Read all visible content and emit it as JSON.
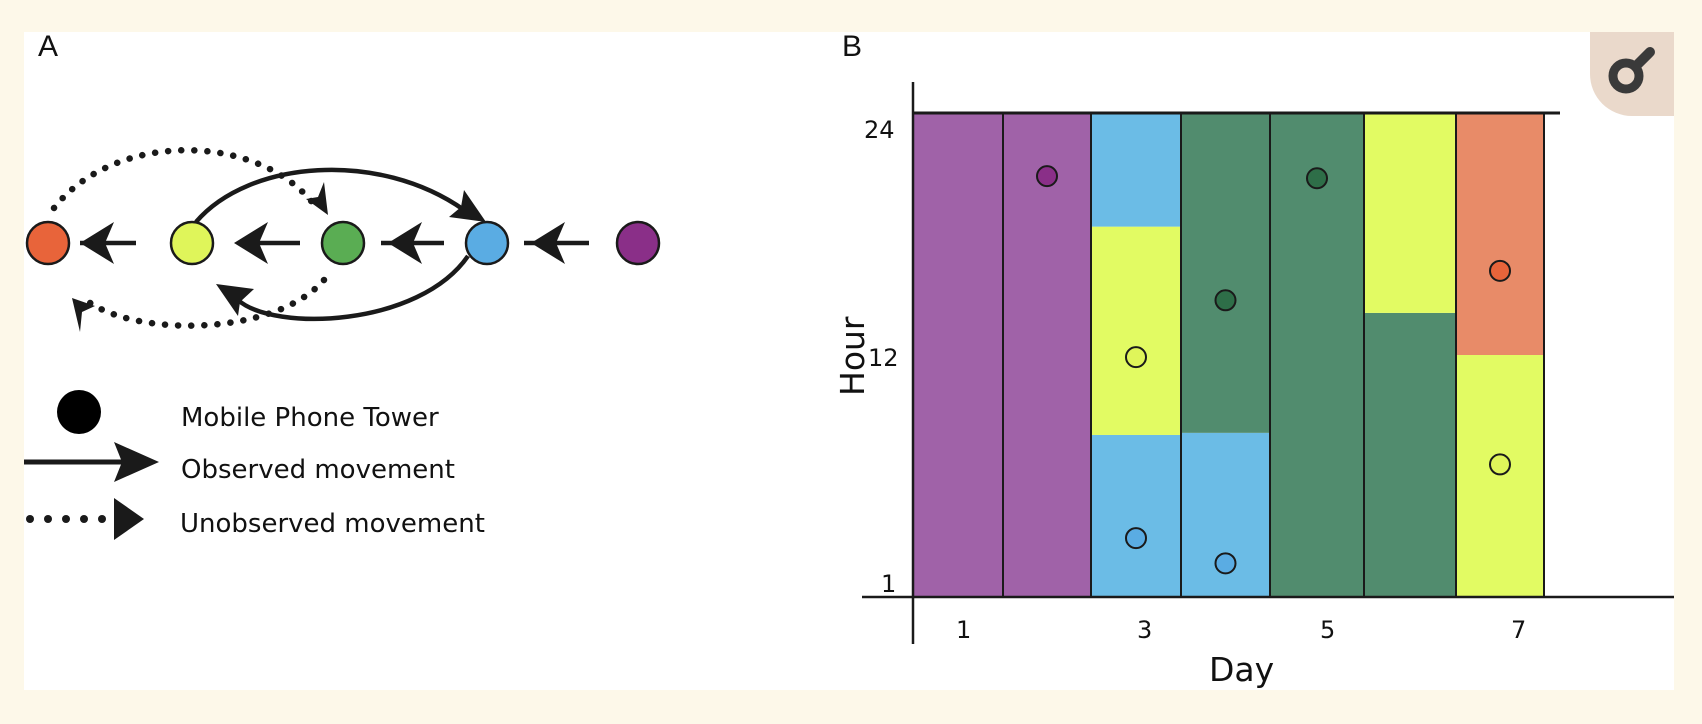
{
  "panel_a": {
    "label": "A",
    "nodes": [
      {
        "id": "orange",
        "color": "#e8643a"
      },
      {
        "id": "yellow",
        "color": "#dff55a"
      },
      {
        "id": "green",
        "color": "#5aad53"
      },
      {
        "id": "blue",
        "color": "#5aace3"
      },
      {
        "id": "purple",
        "color": "#8a2f88"
      }
    ],
    "legend": {
      "tower": "Mobile Phone Tower",
      "observed": "Observed movement",
      "unobserved": "Unobserved movement"
    }
  },
  "panel_b": {
    "label": "B",
    "xlabel": "Day",
    "ylabel": "Hour",
    "xticks": [
      "1",
      "3",
      "5",
      "7"
    ],
    "yticks": [
      "24",
      "12",
      "1"
    ]
  },
  "chart_data": {
    "type": "bar",
    "xlabel": "Day",
    "ylabel": "Hour",
    "ylim": [
      1,
      24
    ],
    "days": [
      1,
      2,
      3,
      4,
      5,
      6,
      7
    ],
    "colors": {
      "purple": "#a062a8",
      "blue": "#6bbce6",
      "yellow": "#e2fb63",
      "green": "#518c6e",
      "orange": "#e88b68"
    },
    "marker_colors": {
      "purple": "#8a2f88",
      "blue": "#5aace3",
      "yellow": "#dff55a",
      "green": "#2e6e48",
      "orange": "#e8643a"
    },
    "segments": [
      {
        "day": 1,
        "from": 1,
        "to": 24,
        "color": "purple"
      },
      {
        "day": 2,
        "from": 1,
        "to": 24,
        "color": "purple"
      },
      {
        "day": 3,
        "from": 1,
        "to": 8.7,
        "color": "blue"
      },
      {
        "day": 3,
        "from": 8.7,
        "to": 18.6,
        "color": "yellow"
      },
      {
        "day": 3,
        "from": 18.6,
        "to": 24,
        "color": "blue"
      },
      {
        "day": 4,
        "from": 1,
        "to": 8.8,
        "color": "blue"
      },
      {
        "day": 4,
        "from": 8.8,
        "to": 24,
        "color": "green"
      },
      {
        "day": 5,
        "from": 1,
        "to": 24,
        "color": "green"
      },
      {
        "day": 6,
        "from": 1,
        "to": 14.5,
        "color": "green"
      },
      {
        "day": 6,
        "from": 14.5,
        "to": 24,
        "color": "yellow"
      },
      {
        "day": 7,
        "from": 1,
        "to": 12.5,
        "color": "yellow"
      },
      {
        "day": 7,
        "from": 12.5,
        "to": 24,
        "color": "orange"
      }
    ],
    "markers": [
      {
        "day": 2,
        "hour": 21,
        "color": "purple"
      },
      {
        "day": 3,
        "hour": 12.4,
        "color": "yellow"
      },
      {
        "day": 3,
        "hour": 3.8,
        "color": "blue"
      },
      {
        "day": 4,
        "hour": 15.1,
        "color": "green"
      },
      {
        "day": 4,
        "hour": 2.6,
        "color": "blue"
      },
      {
        "day": 5,
        "hour": 20.9,
        "color": "green"
      },
      {
        "day": 7,
        "hour": 16.5,
        "color": "orange"
      },
      {
        "day": 7,
        "hour": 7.3,
        "color": "yellow"
      }
    ]
  },
  "toolbar": {
    "zoom_icon": "zoom-icon"
  }
}
